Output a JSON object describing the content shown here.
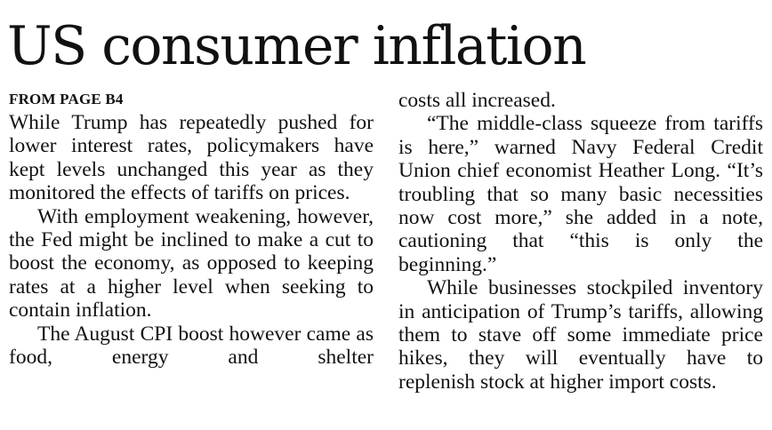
{
  "article": {
    "headline": "US consumer inflation",
    "kicker": "FROM PAGE B4",
    "left_column": [
      "While Trump has repeatedly pushed for lower interest rates, policymakers have kept levels unchanged this year as they monitored the effects of tariffs on prices.",
      "With employment weakening, however, the Fed might be inclined to make a cut to boost the economy, as opposed to keeping rates at a higher level when seeking to contain inflation.",
      "The August CPI boost however came as food, energy and shelter"
    ],
    "right_column": [
      "costs all increased.",
      "“The middle-class squeeze from tariffs is here,” warned Navy Federal Credit Union chief economist Heather Long. “It’s troubling that so many basic necessities now cost more,” she added in a note, cautioning that “this is only the beginning.”",
      "While businesses stockpiled inventory in anticipation of Trump’s tariffs, allowing them to stave off some immediate price hikes, they will eventually have to replenish stock at higher import costs."
    ]
  }
}
